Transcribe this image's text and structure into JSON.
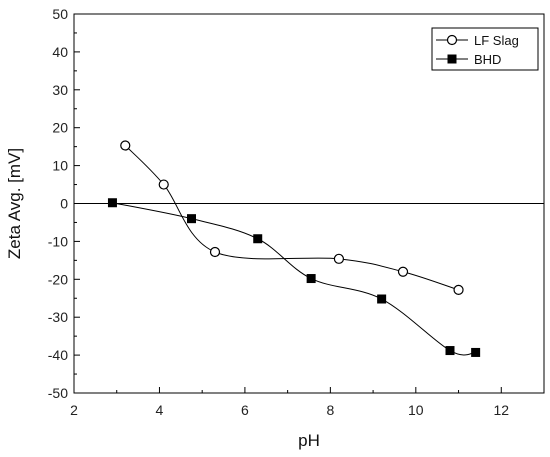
{
  "chart_data": {
    "type": "line",
    "xlabel": "pH",
    "ylabel": "Zeta Avg. [mV]",
    "xlim": [
      2,
      13
    ],
    "ylim": [
      -50,
      50
    ],
    "x_ticks": [
      2,
      4,
      6,
      8,
      10,
      12
    ],
    "y_ticks": [
      50,
      40,
      30,
      20,
      10,
      0,
      -10,
      -20,
      -30,
      -40,
      -50
    ],
    "zero_line": true,
    "grid": false,
    "legend_position": "top-right",
    "series": [
      {
        "name": "LF Slag",
        "marker": "open-circle",
        "color": "#000000",
        "x": [
          3.2,
          4.1,
          5.3,
          8.2,
          9.7,
          11.0
        ],
        "y": [
          15.3,
          5.0,
          -12.8,
          -14.6,
          -18.0,
          -22.8
        ]
      },
      {
        "name": "BHD",
        "marker": "filled-square",
        "color": "#000000",
        "x": [
          2.9,
          4.75,
          6.3,
          7.55,
          9.2,
          10.8,
          11.4
        ],
        "y": [
          0.2,
          -4.0,
          -9.3,
          -19.8,
          -25.2,
          -38.8,
          -39.3
        ]
      }
    ]
  }
}
